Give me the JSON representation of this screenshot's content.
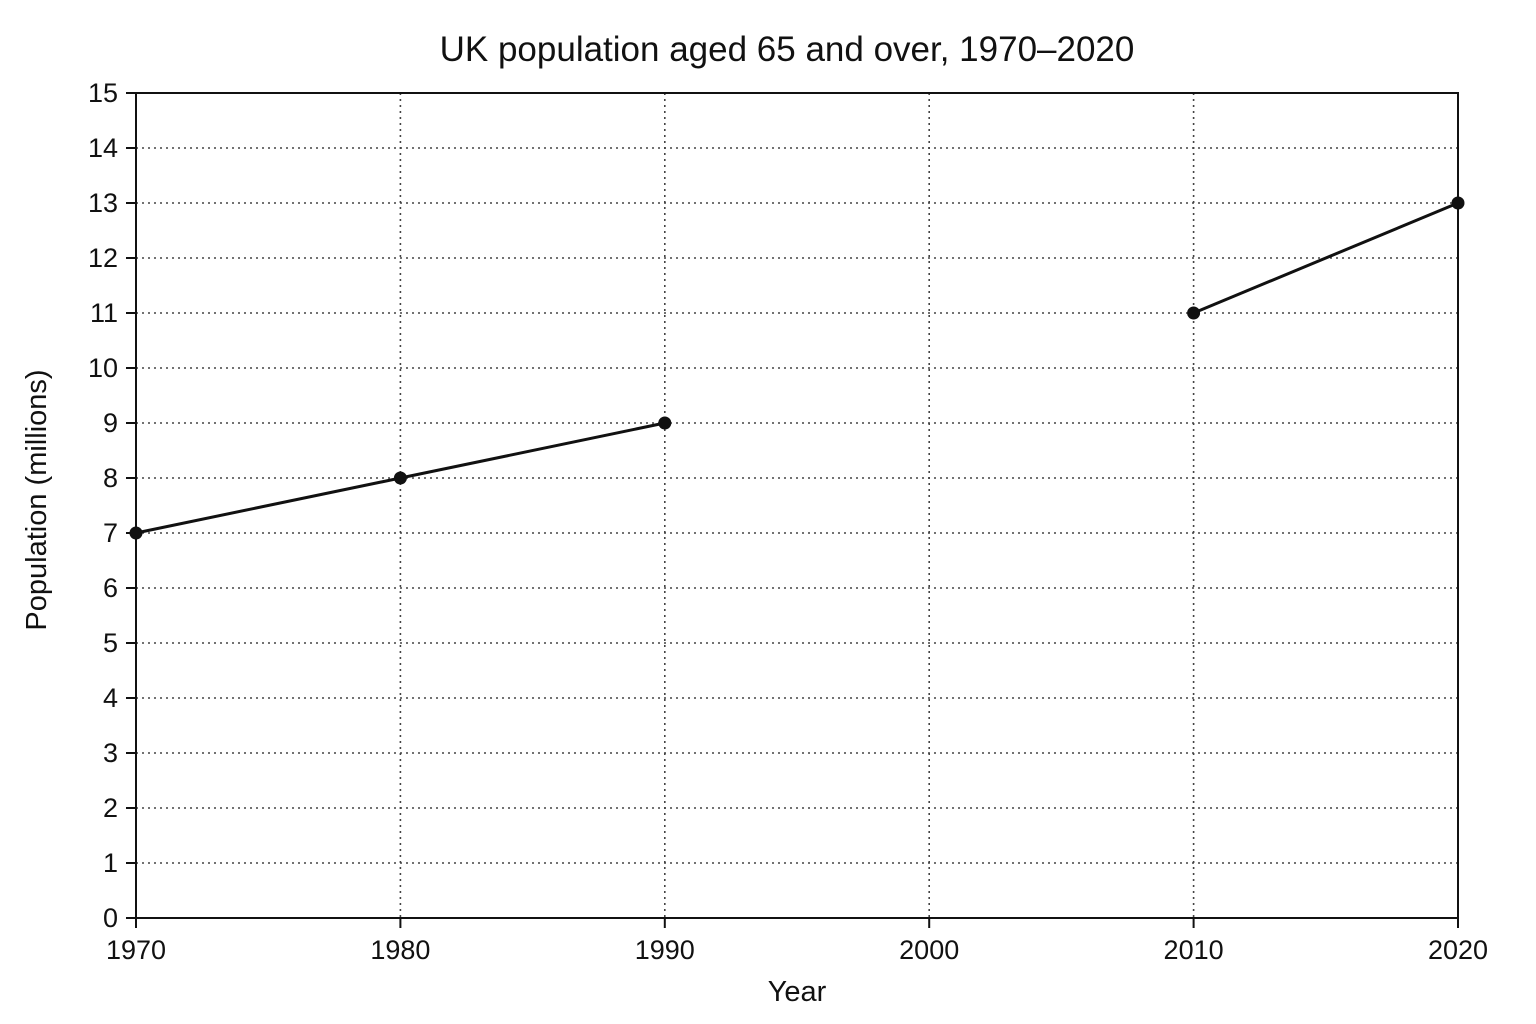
{
  "chart_data": {
    "type": "line",
    "title": "UK population aged 65 and over, 1970–2020",
    "xlabel": "Year",
    "ylabel": "Population (millions)",
    "xlim": [
      1970,
      2020
    ],
    "ylim": [
      0,
      15
    ],
    "x_ticks": [
      1970,
      1980,
      1990,
      2000,
      2010,
      2020
    ],
    "y_ticks": [
      0,
      1,
      2,
      3,
      4,
      5,
      6,
      7,
      8,
      9,
      10,
      11,
      12,
      13,
      14,
      15
    ],
    "grid": true,
    "grid_style": "dotted",
    "series": [
      {
        "points": [
          {
            "x": 1970,
            "y": 7
          },
          {
            "x": 1980,
            "y": 8
          },
          {
            "x": 1990,
            "y": 9
          },
          {
            "x": 2000,
            "y": null
          },
          {
            "x": 2010,
            "y": 11
          },
          {
            "x": 2020,
            "y": 13
          }
        ],
        "color": "#111111"
      }
    ]
  }
}
